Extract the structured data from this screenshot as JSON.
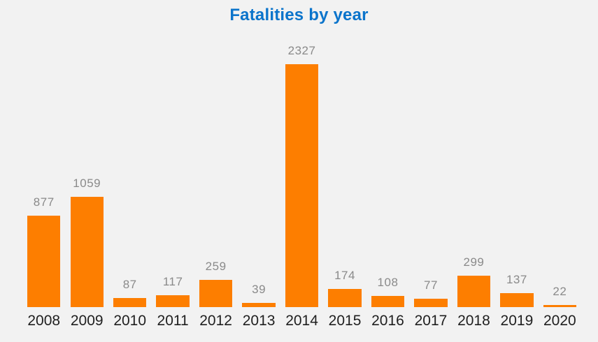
{
  "title": "Fatalities by year",
  "colors": {
    "background": "#F2F2F2",
    "bar": "#FD7E00",
    "title": "#0B74CB",
    "value_label": "#8A8A8A",
    "axis_label": "#1F1F1F"
  },
  "chart_data": {
    "type": "bar",
    "title": "Fatalities by year",
    "categories": [
      "2008",
      "2009",
      "2010",
      "2011",
      "2012",
      "2013",
      "2014",
      "2015",
      "2016",
      "2017",
      "2018",
      "2019",
      "2020"
    ],
    "values": [
      877,
      1059,
      87,
      117,
      259,
      39,
      2327,
      174,
      108,
      77,
      299,
      137,
      22
    ],
    "xlabel": "",
    "ylabel": "",
    "ylim": [
      0,
      2327
    ],
    "grid": false,
    "legend": "none",
    "data_labels": true,
    "y_axis_visible": false,
    "bar_color": "#FD7E00"
  }
}
